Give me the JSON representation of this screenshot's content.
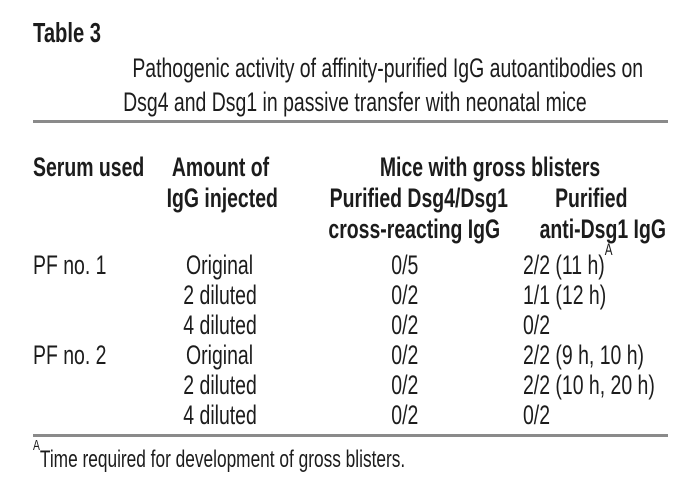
{
  "header": {
    "label": "Table 3",
    "title_lines": [
      "Pathogenic activity of affinity-purified IgG autoantibodies on",
      "Dsg4 and Dsg1 in passive transfer with neonatal mice"
    ]
  },
  "table": {
    "header": {
      "serum": "Serum used",
      "amount": [
        "Amount of",
        "IgG injected"
      ],
      "group": "Mice with gross blisters",
      "cross": [
        "Purified Dsg4/Dsg1",
        "cross-reacting IgG"
      ],
      "anti": [
        "Purified",
        "anti-Dsg1 IgG"
      ]
    },
    "rows": [
      {
        "serum": "PF no. 1",
        "amount": "Original",
        "cross": "0/5",
        "anti": "2/2 (11 h)",
        "sup": "A"
      },
      {
        "serum": "",
        "amount": "2 diluted",
        "cross": "0/2",
        "anti": "1/1 (12 h)",
        "sup": ""
      },
      {
        "serum": "",
        "amount": "4 diluted",
        "cross": "0/2",
        "anti": "0/2",
        "sup": ""
      },
      {
        "serum": "PF no. 2",
        "amount": "Original",
        "cross": "0/2",
        "anti": "2/2 (9 h, 10 h)",
        "sup": ""
      },
      {
        "serum": "",
        "amount": "2 diluted",
        "cross": "0/2",
        "anti": "2/2 (10 h, 20 h)",
        "sup": ""
      },
      {
        "serum": "",
        "amount": "4 diluted",
        "cross": "0/2",
        "anti": "0/2",
        "sup": ""
      }
    ]
  },
  "footnote": {
    "marker": "A",
    "text": "Time required for development of gross blisters."
  },
  "colors": {
    "text": "#1c1c1c",
    "rule": "#8a8a8a",
    "background": "#ffffff"
  }
}
